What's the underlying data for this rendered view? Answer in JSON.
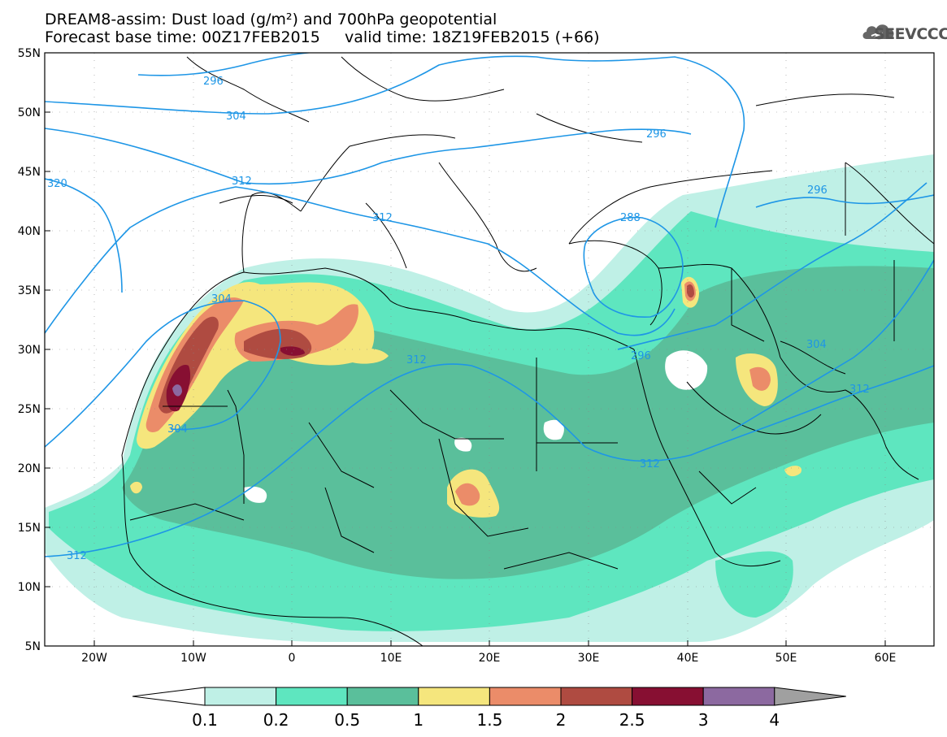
{
  "title_line1": "DREAM8-assim: Dust load (g/m²) and 700hPa geopotential",
  "title_line2": "Forecast base time: 00Z17FEB2015     valid time: 18Z19FEB2015 (+66)",
  "logo": {
    "text": "SEEVCCC",
    "icon": "cloud-logo-icon"
  },
  "map": {
    "lat_labels": [
      "55N",
      "50N",
      "45N",
      "40N",
      "35N",
      "30N",
      "25N",
      "20N",
      "15N",
      "10N",
      "5N"
    ],
    "lon_labels": [
      "20W",
      "10W",
      "0",
      "10E",
      "20E",
      "30E",
      "40E",
      "50E",
      "60E"
    ],
    "contour_labels": [
      "296",
      "304",
      "312",
      "320",
      "312",
      "312",
      "304",
      "304",
      "296",
      "288",
      "296",
      "296",
      "304",
      "312",
      "312",
      "312"
    ]
  },
  "colorbar": {
    "ticks": [
      "0.1",
      "0.2",
      "0.5",
      "1",
      "1.5",
      "2",
      "2.5",
      "3",
      "4"
    ],
    "colors": [
      "#bff0e6",
      "#5ee6bf",
      "#5abf9b",
      "#f5e67d",
      "#eb8c69",
      "#af4b41",
      "#870f32",
      "#8c69a0",
      "#a0a0a0"
    ]
  },
  "colors": {
    "contour": "#1e96e6",
    "border": "#000000"
  }
}
